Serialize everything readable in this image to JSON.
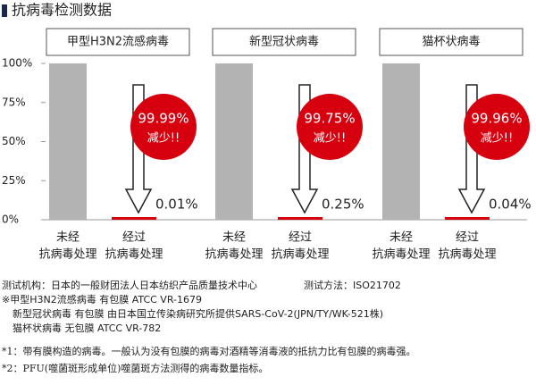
{
  "title": "抗病毒检测数据",
  "chart_data": [
    {
      "type": "bar",
      "title": "甲型H3N2流感病毒",
      "categories": [
        [
          "未经",
          "抗病毒处理"
        ],
        [
          "经过",
          "抗病毒处理"
        ]
      ],
      "values": [
        100,
        0.01
      ],
      "value_labels": [
        null,
        "0.01%"
      ],
      "colors": [
        "#b3b3b3",
        "#d7000f"
      ],
      "annotations": [
        "99.99%",
        "减少!!"
      ],
      "ylim": [
        0,
        100
      ],
      "yticks": [
        {
          "value": 0,
          "label": "0%"
        },
        {
          "value": 25,
          "label": "25%"
        },
        {
          "value": 50,
          "label": "50%"
        },
        {
          "value": 75,
          "label": "75%"
        },
        {
          "value": 100,
          "label": "100%"
        }
      ]
    },
    {
      "type": "bar",
      "title": "新型冠状病毒",
      "categories": [
        [
          "未经",
          "抗病毒处理"
        ],
        [
          "经过",
          "抗病毒处理"
        ]
      ],
      "values": [
        100,
        0.25
      ],
      "value_labels": [
        null,
        "0.25%"
      ],
      "colors": [
        "#b3b3b3",
        "#d7000f"
      ],
      "annotations": [
        "99.75%",
        "减少!!"
      ],
      "ylim": [
        0,
        100
      ]
    },
    {
      "type": "bar",
      "title": "猫杯状病毒",
      "categories": [
        [
          "未经",
          "抗病毒处理"
        ],
        [
          "经过",
          "抗病毒处理"
        ]
      ],
      "values": [
        100,
        0.04
      ],
      "value_labels": [
        null,
        "0.04%"
      ],
      "colors": [
        "#b3b3b3",
        "#d7000f"
      ],
      "annotations": [
        "99.96%",
        "减少!!"
      ],
      "ylim": [
        0,
        100
      ]
    }
  ],
  "notes": [
    "测试机构：日本的一般财团法人日本纺织产品质量技术中心",
    "测试方法：ISO21702",
    "※甲型H3N2流感病毒 有包膜 ATCC VR-1679",
    "新型冠状病毒 有包膜 由日本国立传染病研究所提供SARS-CoV-2(JPN/TY/WK-521株)",
    "猫杯状病毒 无包膜 ATCC VR-782",
    "*1：带有膜构造的病毒。一般认为没有包膜的病毒对酒精等消毒液的抵抗力比有包膜的病毒强。",
    "*2：PFU(噬菌斑形成单位)噬菌斑方法测得的病毒数量指标。"
  ]
}
